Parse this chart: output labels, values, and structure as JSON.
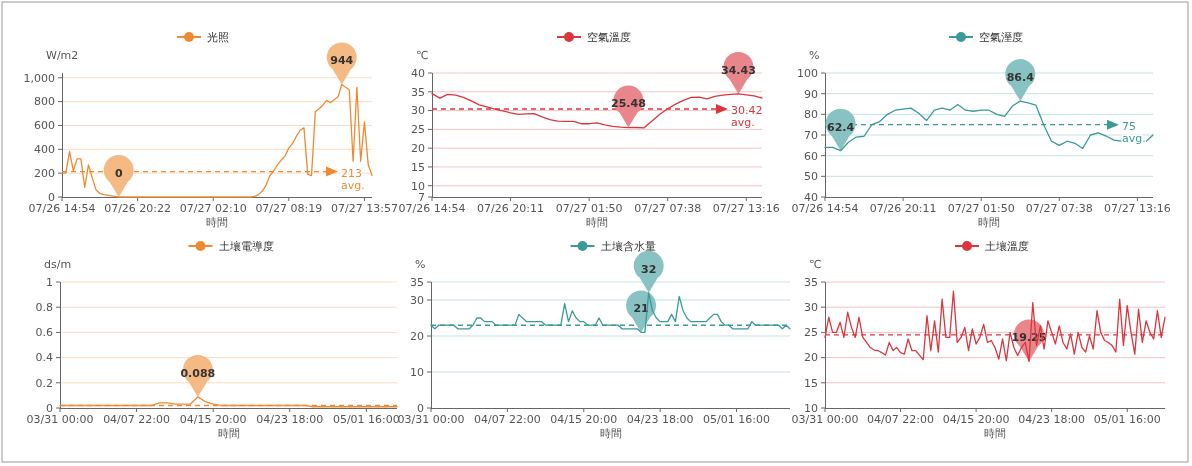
{
  "chart_data": [
    {
      "type": "line",
      "ylabel": "W/m2",
      "xlabel": "時間",
      "grid": "y",
      "legend": "top",
      "ylim": [
        0,
        1040
      ],
      "categories": [
        "07/26 14:54",
        null,
        null,
        null,
        null,
        null,
        null,
        null,
        null,
        null,
        null,
        null,
        null,
        null,
        null,
        null,
        null,
        null,
        null,
        null,
        "07/26 20:22",
        null,
        null,
        null,
        null,
        null,
        null,
        null,
        null,
        null,
        null,
        null,
        null,
        null,
        null,
        null,
        null,
        null,
        null,
        null,
        "07/27 02:10",
        null,
        null,
        null,
        null,
        null,
        null,
        null,
        null,
        null,
        null,
        null,
        null,
        null,
        null,
        null,
        null,
        null,
        null,
        null,
        "07/27 08:19",
        null,
        null,
        null,
        null,
        null,
        null,
        null,
        null,
        null,
        null,
        null,
        null,
        null,
        null,
        null,
        null,
        null,
        null,
        null,
        "07/27 13:57",
        null,
        null
      ],
      "yticks": [
        0,
        200,
        400,
        600,
        800,
        {
          "value": 1000,
          "label": "1,000"
        }
      ],
      "series": [
        {
          "name": "光照",
          "color": "#ef8a32",
          "values": [
            200,
            200,
            380,
            220,
            320,
            320,
            80,
            270,
            160,
            60,
            30,
            20,
            15,
            10,
            5,
            0,
            0,
            0,
            0,
            0,
            0,
            0,
            0,
            0,
            0,
            0,
            0,
            0,
            0,
            0,
            0,
            0,
            0,
            0,
            0,
            0,
            0,
            0,
            0,
            0,
            0,
            0,
            0,
            0,
            0,
            0,
            0,
            0,
            0,
            0,
            0,
            5,
            20,
            50,
            100,
            180,
            220,
            270,
            310,
            345,
            410,
            450,
            510,
            560,
            580,
            190,
            180,
            715,
            740,
            770,
            810,
            790,
            815,
            840,
            944,
            920,
            900,
            300,
            920,
            300,
            630,
            270,
            180
          ]
        }
      ],
      "ref_lines": [
        {
          "axis": "y",
          "value": 213,
          "label": "213 avg."
        }
      ],
      "annotations": [
        {
          "text": "0",
          "y": 0
        },
        {
          "text": "944",
          "y": 944
        }
      ]
    },
    {
      "type": "line",
      "ylabel": "℃",
      "xlabel": "時間",
      "grid": "y",
      "legend": "top",
      "ylim": [
        7,
        40
      ],
      "categories": [
        "07/26 14:54",
        null,
        null,
        null,
        null,
        null,
        null,
        null,
        null,
        null,
        "07/26 20:11",
        null,
        null,
        null,
        null,
        null,
        null,
        null,
        null,
        null,
        "07/27 01:50",
        null,
        null,
        null,
        null,
        null,
        null,
        null,
        null,
        null,
        "07/27 07:38",
        null,
        null,
        null,
        null,
        null,
        null,
        null,
        null,
        null,
        "07/27 13:16",
        null,
        null
      ],
      "yticks": [
        7,
        10,
        15,
        20,
        25,
        30,
        35,
        40
      ],
      "series": [
        {
          "name": "空氣溫度",
          "color": "#d9363e",
          "values": [
            34.5,
            33.3,
            34.3,
            34.1,
            33.5,
            32.6,
            31.5,
            31,
            30.4,
            29.9,
            29.4,
            29,
            29.1,
            29.2,
            28.3,
            27.6,
            27.2,
            27.1,
            27.1,
            26.5,
            26.5,
            26.7,
            26.2,
            25.8,
            25.6,
            25.48,
            25.5,
            25.4,
            27.2,
            29,
            30.5,
            31.7,
            32.7,
            33.5,
            33.6,
            33.1,
            33.8,
            34.1,
            34.3,
            34.43,
            34.2,
            33.9,
            33.3
          ]
        }
      ],
      "ref_lines": [
        {
          "axis": "y",
          "value": 30.42,
          "label": "30.42 avg."
        }
      ],
      "annotations": [
        {
          "text": "25.48",
          "y": 25.48
        },
        {
          "text": "34.43",
          "y": 34.43
        }
      ]
    },
    {
      "type": "line",
      "ylabel": "%",
      "xlabel": "時間",
      "grid": "y",
      "legend": "top",
      "ylim": [
        40,
        100
      ],
      "categories": [
        "07/26 14:54",
        null,
        null,
        null,
        null,
        null,
        null,
        null,
        null,
        null,
        "07/26 20:11",
        null,
        null,
        null,
        null,
        null,
        null,
        null,
        null,
        null,
        "07/27 01:50",
        null,
        null,
        null,
        null,
        null,
        null,
        null,
        null,
        null,
        "07/27 07:38",
        null,
        null,
        null,
        null,
        null,
        null,
        null,
        null,
        null,
        "07/27 13:16",
        null,
        null
      ],
      "yticks": [
        40,
        50,
        60,
        70,
        80,
        90,
        100
      ],
      "series": [
        {
          "name": "空氣溼度",
          "color": "#3a9a9a",
          "values": [
            64,
            64,
            62.4,
            66.5,
            69,
            69.4,
            75,
            76.5,
            80,
            82,
            82.5,
            83,
            80.5,
            77,
            82,
            83,
            82,
            84.8,
            82,
            81.5,
            82,
            82,
            80,
            79,
            84,
            86.4,
            85.5,
            84.5,
            75,
            67,
            65,
            67,
            66,
            63.5,
            70,
            71,
            69.5,
            67.5,
            67,
            68.5,
            67,
            66.5,
            70
          ]
        }
      ],
      "ref_lines": [
        {
          "axis": "y",
          "value": 75,
          "label": "75 avg."
        }
      ],
      "annotations": [
        {
          "text": "62.4",
          "y": 62.4
        },
        {
          "text": "86.4",
          "y": 86.4
        }
      ]
    },
    {
      "type": "line",
      "ylabel": "ds/m",
      "xlabel": "時間",
      "grid": "y",
      "legend": "top",
      "ylim": [
        0,
        1
      ],
      "categories": [
        "03/31 00:00",
        null,
        null,
        null,
        null,
        null,
        null,
        null,
        null,
        null,
        "04/07 22:00",
        null,
        null,
        null,
        null,
        null,
        null,
        null,
        null,
        null,
        "04/15 20:00",
        null,
        null,
        null,
        null,
        null,
        null,
        null,
        null,
        null,
        "04/23 18:00",
        null,
        null,
        null,
        null,
        null,
        null,
        null,
        null,
        null,
        "05/01 16:00",
        null,
        null,
        null,
        null
      ],
      "yticks": [
        0,
        0.2,
        0.4,
        0.6,
        0.8,
        1
      ],
      "series": [
        {
          "name": "土壤電導度",
          "color": "#ef8a32",
          "values": [
            0.02,
            0.02,
            0.02,
            0.02,
            0.02,
            0.02,
            0.02,
            0.02,
            0.02,
            0.02,
            0.02,
            0.02,
            0.02,
            0.04,
            0.04,
            0.03,
            0.03,
            0.03,
            0.088,
            0.05,
            0.03,
            0.02,
            0.02,
            0.02,
            0.02,
            0.02,
            0.02,
            0.02,
            0.02,
            0.02,
            0.02,
            0.02,
            0.02,
            0.01,
            0.01,
            0.01,
            0.01,
            0.01,
            0.01,
            0.01,
            0.01,
            0.01,
            0.01,
            0.01,
            0.01
          ]
        }
      ],
      "ref_lines": [
        {
          "axis": "y",
          "value": 0.02
        }
      ],
      "annotations": [
        {
          "text": "0.088",
          "y": 0.088
        }
      ]
    },
    {
      "type": "line",
      "ylabel": "%",
      "xlabel": "時間",
      "grid": "y",
      "legend": "top",
      "ylim": [
        0,
        35
      ],
      "categories": [
        "03/31 00:00",
        null,
        null,
        null,
        null,
        null,
        null,
        null,
        null,
        null,
        null,
        null,
        null,
        null,
        null,
        null,
        null,
        null,
        null,
        null,
        "04/07 22:00",
        null,
        null,
        null,
        null,
        null,
        null,
        null,
        null,
        null,
        null,
        null,
        null,
        null,
        null,
        null,
        null,
        null,
        null,
        null,
        "04/15 20:00",
        null,
        null,
        null,
        null,
        null,
        null,
        null,
        null,
        null,
        null,
        null,
        null,
        null,
        null,
        null,
        null,
        null,
        null,
        null,
        "04/23 18:00",
        null,
        null,
        null,
        null,
        null,
        null,
        null,
        null,
        null,
        null,
        null,
        null,
        null,
        null,
        null,
        null,
        null,
        null,
        null,
        "05/01 16:00",
        null,
        null,
        null,
        null,
        null,
        null,
        null,
        null,
        null,
        null,
        null,
        null,
        null,
        null
      ],
      "yticks": [
        0,
        10,
        20,
        30,
        35
      ],
      "series": [
        {
          "name": "土壤含水量",
          "color": "#3a9a9a",
          "values": [
            23,
            22,
            23,
            23,
            23,
            23,
            23,
            22,
            22,
            22,
            22,
            23,
            25,
            25,
            24,
            24,
            24,
            23,
            23,
            23,
            23,
            23,
            23,
            26,
            25,
            24,
            24,
            24,
            24,
            24,
            23,
            23,
            23,
            23,
            23,
            29,
            24,
            27,
            25,
            24,
            24,
            23,
            23,
            23,
            25,
            23,
            23,
            23,
            23,
            23,
            22,
            22,
            22,
            22,
            22,
            21,
            21,
            32,
            27,
            25,
            24,
            24,
            24,
            26,
            24,
            31,
            27,
            25,
            24,
            24,
            24,
            24,
            24,
            25,
            26,
            26,
            24,
            23,
            23,
            22,
            22,
            22,
            22,
            22,
            24,
            23,
            23,
            23,
            23,
            23,
            23,
            23,
            22,
            23,
            22
          ]
        }
      ],
      "ref_lines": [
        {
          "axis": "y",
          "value": 23
        }
      ],
      "annotations": [
        {
          "text": "32",
          "y": 32
        },
        {
          "text": "21",
          "y": 21
        }
      ]
    },
    {
      "type": "line",
      "ylabel": "℃",
      "xlabel": "時間",
      "grid": "y",
      "legend": "top",
      "ylim": [
        10,
        35
      ],
      "categories": [
        "03/31 00:00",
        null,
        null,
        null,
        null,
        null,
        null,
        null,
        null,
        null,
        null,
        null,
        null,
        null,
        null,
        null,
        null,
        null,
        null,
        null,
        "04/07 22:00",
        null,
        null,
        null,
        null,
        null,
        null,
        null,
        null,
        null,
        null,
        null,
        null,
        null,
        null,
        null,
        null,
        null,
        null,
        null,
        "04/15 20:00",
        null,
        null,
        null,
        null,
        null,
        null,
        null,
        null,
        null,
        null,
        null,
        null,
        null,
        null,
        null,
        null,
        null,
        null,
        null,
        "04/23 18:00",
        null,
        null,
        null,
        null,
        null,
        null,
        null,
        null,
        null,
        null,
        null,
        null,
        null,
        null,
        null,
        null,
        null,
        null,
        null,
        "05/01 16:00",
        null,
        null,
        null,
        null,
        null,
        null,
        null,
        null,
        null,
        null
      ],
      "yticks": [
        10,
        15,
        20,
        25,
        30,
        35
      ],
      "series": [
        {
          "name": "土壤溫度",
          "color": "#d9363e",
          "values": [
            24,
            28,
            25,
            25,
            27,
            24,
            29,
            26,
            24,
            28,
            24,
            23,
            22,
            21.5,
            21.4,
            21,
            20.5,
            23,
            21.4,
            22,
            21,
            20.7,
            23.7,
            21.4,
            21.4,
            20.5,
            19.6,
            28.3,
            21.4,
            27.3,
            21.1,
            31.6,
            24,
            24,
            33.2,
            23,
            24,
            26,
            21.4,
            25.7,
            22.7,
            24,
            26.6,
            23,
            23.4,
            22,
            19.7,
            23.7,
            19.4,
            25,
            22,
            20.4,
            22,
            23,
            19.25,
            30.9,
            22.4,
            26.3,
            21.7,
            27.3,
            25,
            22.7,
            26.3,
            23,
            21.7,
            24.7,
            20.7,
            25,
            22,
            21.1,
            24.3,
            21.7,
            29.3,
            25,
            23.4,
            23,
            22.4,
            21.1,
            31.6,
            22.4,
            30.3,
            25,
            20.7,
            29.6,
            23,
            27.3,
            25,
            23.7,
            29.3,
            24,
            28
          ]
        }
      ],
      "ref_lines": [
        {
          "axis": "y",
          "value": 24.5
        }
      ],
      "annotations": [
        {
          "text": "19.25",
          "y": 19.25
        }
      ]
    }
  ]
}
